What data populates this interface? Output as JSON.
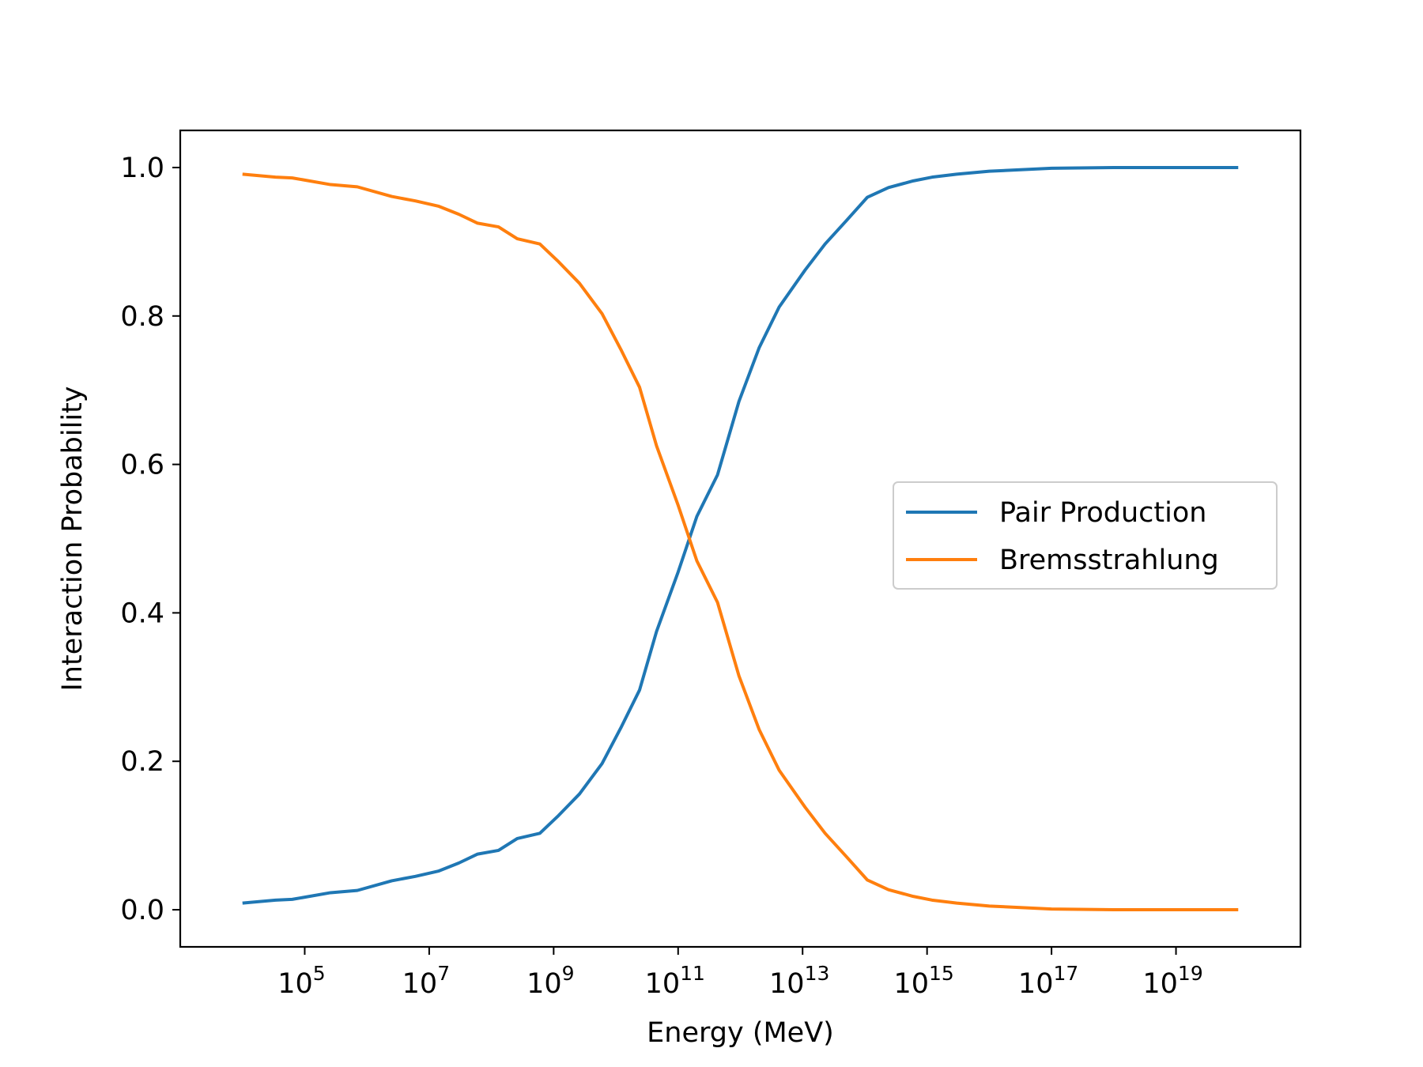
{
  "chart_data": {
    "type": "line",
    "xlabel": "Energy (MeV)",
    "ylabel": "Interaction Probability",
    "xscale": "log",
    "xlim": [
      1000,
      1e+21
    ],
    "ylim": [
      -0.05,
      1.05
    ],
    "grid": false,
    "legend_position": "center-right",
    "x_ticks": [
      {
        "value": 100000.0,
        "base": "10",
        "exp": "5"
      },
      {
        "value": 10000000.0,
        "base": "10",
        "exp": "7"
      },
      {
        "value": 1000000000.0,
        "base": "10",
        "exp": "9"
      },
      {
        "value": 100000000000.0,
        "base": "10",
        "exp": "11"
      },
      {
        "value": 10000000000000.0,
        "base": "10",
        "exp": "13"
      },
      {
        "value": 1000000000000000.0,
        "base": "10",
        "exp": "15"
      },
      {
        "value": 1e+17,
        "base": "10",
        "exp": "17"
      },
      {
        "value": 1e+19,
        "base": "10",
        "exp": "19"
      }
    ],
    "y_ticks": [
      {
        "value": 0.0,
        "label": "0.0"
      },
      {
        "value": 0.2,
        "label": "0.2"
      },
      {
        "value": 0.4,
        "label": "0.4"
      },
      {
        "value": 0.6,
        "label": "0.6"
      },
      {
        "value": 0.8,
        "label": "0.8"
      },
      {
        "value": 1.0,
        "label": "1.0"
      }
    ],
    "x": [
      10000.0,
      34000.0,
      63000.0,
      260000.0,
      700000.0,
      2500000.0,
      6000000.0,
      14000000.0,
      30000000.0,
      60000000.0,
      130000000.0,
      260000000.0,
      600000000.0,
      1200000000.0,
      2600000000.0,
      6000000000.0,
      12000000000.0,
      24000000000.0,
      45000000000.0,
      100000000000.0,
      200000000000.0,
      430000000000.0,
      950000000000.0,
      2000000000000.0,
      4200000000000.0,
      11000000000000.0,
      23000000000000.0,
      50000000000000.0,
      110000000000000.0,
      240000000000000.0,
      600000000000000.0,
      1200000000000000.0,
      3000000000000000.0,
      1e+16,
      1e+17,
      1e+18,
      1e+19,
      1e+20
    ],
    "series": [
      {
        "name": "Pair Production",
        "color": "#1f77b4",
        "values": [
          0.009,
          0.013,
          0.014,
          0.023,
          0.026,
          0.039,
          0.045,
          0.052,
          0.063,
          0.075,
          0.08,
          0.096,
          0.103,
          0.127,
          0.156,
          0.197,
          0.245,
          0.296,
          0.375,
          0.455,
          0.53,
          0.586,
          0.685,
          0.757,
          0.812,
          0.862,
          0.897,
          0.928,
          0.96,
          0.973,
          0.982,
          0.987,
          0.991,
          0.995,
          0.999,
          1.0,
          1.0,
          1.0
        ]
      },
      {
        "name": "Bremsstrahlung",
        "color": "#ff7f0e",
        "values": [
          0.991,
          0.987,
          0.986,
          0.977,
          0.974,
          0.961,
          0.955,
          0.948,
          0.937,
          0.925,
          0.92,
          0.904,
          0.897,
          0.873,
          0.844,
          0.803,
          0.755,
          0.704,
          0.625,
          0.545,
          0.47,
          0.414,
          0.315,
          0.243,
          0.188,
          0.138,
          0.103,
          0.072,
          0.04,
          0.027,
          0.018,
          0.013,
          0.009,
          0.005,
          0.001,
          0.0,
          0.0,
          0.0
        ]
      }
    ]
  }
}
